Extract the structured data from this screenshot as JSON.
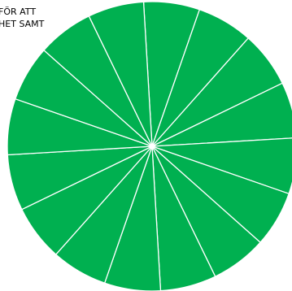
{
  "text": {
    "line1": "FÖR ATT",
    "line2": "HET SAMT"
  },
  "chart_data": {
    "type": "pie",
    "slices": [
      {
        "value": 1
      },
      {
        "value": 1
      },
      {
        "value": 1
      },
      {
        "value": 1
      },
      {
        "value": 1
      },
      {
        "value": 1
      },
      {
        "value": 1
      },
      {
        "value": 1
      },
      {
        "value": 1
      },
      {
        "value": 1
      },
      {
        "value": 1
      },
      {
        "value": 1
      },
      {
        "value": 1
      },
      {
        "value": 1
      },
      {
        "value": 1
      },
      {
        "value": 1
      }
    ],
    "colors": {
      "fill": "#00b050",
      "separator": "#ffffff"
    }
  }
}
